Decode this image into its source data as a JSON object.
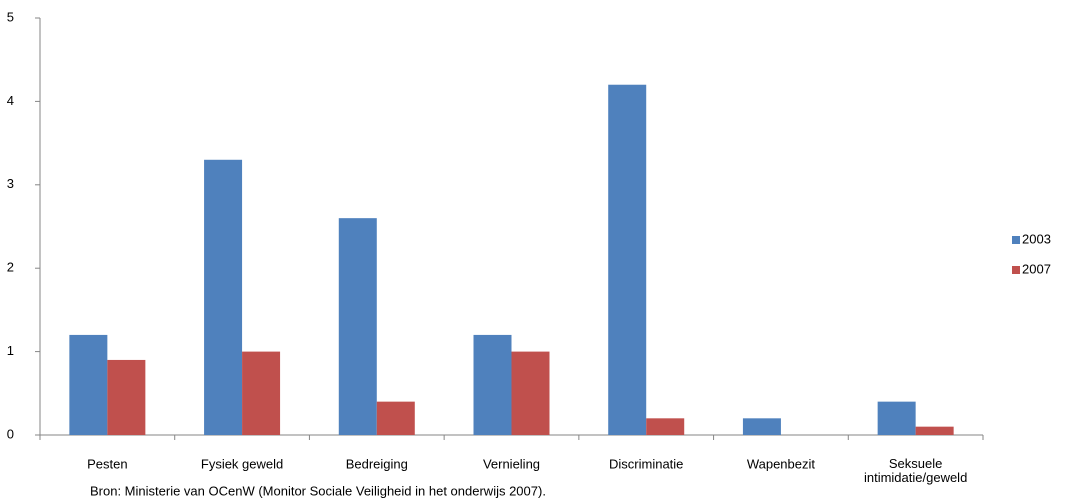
{
  "chart_data": {
    "type": "bar",
    "categories": [
      "Pesten",
      "Fysiek geweld",
      "Bedreiging",
      "Vernieling",
      "Discriminatie",
      "Wapenbezit",
      "Seksuele intimidatie/geweld"
    ],
    "series": [
      {
        "name": "2003",
        "color": "#4f81bd",
        "values": [
          1.2,
          3.3,
          2.6,
          1.2,
          4.2,
          0.2,
          0.4
        ]
      },
      {
        "name": "2007",
        "color": "#c0504d",
        "values": [
          0.9,
          1.0,
          0.4,
          1.0,
          0.2,
          0,
          0.1
        ]
      }
    ],
    "ylim": [
      0,
      5
    ],
    "yticks": [
      0,
      1,
      2,
      3,
      4,
      5
    ],
    "grid": false,
    "legend": "right",
    "source": "Bron: Ministerie van OCenW (Monitor Sociale Veiligheid in het onderwijs 2007)."
  }
}
